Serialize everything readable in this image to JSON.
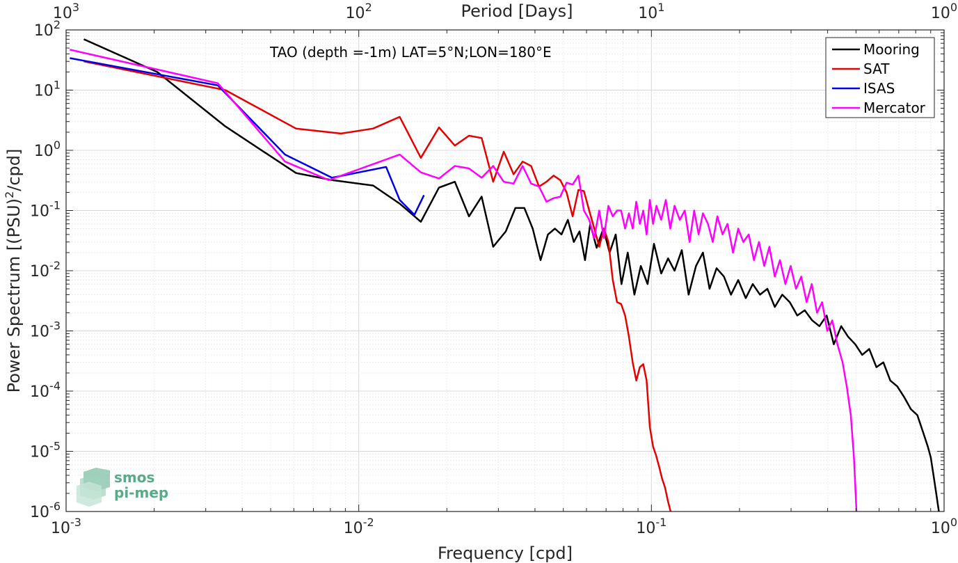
{
  "chart_data": {
    "type": "line",
    "xlabel": "Frequency [cpd]",
    "ylabel": "Power Spectrum [(PSU)",
    "ylabel_superscript": "2",
    "ylabel_suffix": "/cpd]",
    "top_xlabel": "Period [Days]",
    "annotation": "TAO (depth =-1m) LAT=5°N;LON=180°E",
    "xscale": "log",
    "yscale": "log",
    "xlim": [
      0.001,
      1
    ],
    "ylim": [
      1e-06,
      100
    ],
    "grid": true,
    "legend_position": "top-right",
    "x_ticks": [
      {
        "value": 0.001,
        "base": "10",
        "exp": "-3"
      },
      {
        "value": 0.01,
        "base": "10",
        "exp": "-2"
      },
      {
        "value": 0.1,
        "base": "10",
        "exp": "-1"
      },
      {
        "value": 1,
        "base": "10",
        "exp": "0"
      }
    ],
    "top_ticks": [
      {
        "value": 0.001,
        "base": "10",
        "exp": "3"
      },
      {
        "value": 0.01,
        "base": "10",
        "exp": "2"
      },
      {
        "value": 0.1,
        "base": "10",
        "exp": "1"
      },
      {
        "value": 1,
        "base": "10",
        "exp": "0"
      }
    ],
    "y_ticks": [
      {
        "value": 100,
        "base": "10",
        "exp": "2"
      },
      {
        "value": 10,
        "base": "10",
        "exp": "1"
      },
      {
        "value": 1,
        "base": "10",
        "exp": "0"
      },
      {
        "value": 0.1,
        "base": "10",
        "exp": "-1"
      },
      {
        "value": 0.01,
        "base": "10",
        "exp": "-2"
      },
      {
        "value": 0.001,
        "base": "10",
        "exp": "-3"
      },
      {
        "value": 0.0001,
        "base": "10",
        "exp": "-4"
      },
      {
        "value": 1e-05,
        "base": "10",
        "exp": "-5"
      },
      {
        "value": 1e-06,
        "base": "10",
        "exp": "-6"
      }
    ],
    "series": [
      {
        "name": "Mooring",
        "color": "#000000",
        "x": [
          0.00115,
          0.00205,
          0.0035,
          0.0061,
          0.0081,
          0.0112,
          0.0138,
          0.0163,
          0.0188,
          0.0213,
          0.0238,
          0.0263,
          0.0288,
          0.0318,
          0.0343,
          0.0368,
          0.0393,
          0.0418,
          0.0443,
          0.0468,
          0.0493,
          0.0518,
          0.0543,
          0.0568,
          0.0593,
          0.0618,
          0.065,
          0.0685,
          0.072,
          0.0755,
          0.079,
          0.083,
          0.0875,
          0.092,
          0.097,
          0.102,
          0.108,
          0.114,
          0.12,
          0.127,
          0.134,
          0.142,
          0.15,
          0.158,
          0.167,
          0.177,
          0.187,
          0.198,
          0.21,
          0.222,
          0.235,
          0.249,
          0.264,
          0.28,
          0.297,
          0.315,
          0.334,
          0.354,
          0.375,
          0.397,
          0.42,
          0.445,
          0.47,
          0.497,
          0.525,
          0.555,
          0.587,
          0.62,
          0.655,
          0.692,
          0.73,
          0.77,
          0.81,
          0.85,
          0.88,
          0.9,
          0.92,
          0.94,
          0.96
        ],
        "values": [
          70,
          20,
          2.5,
          0.42,
          0.32,
          0.26,
          0.13,
          0.065,
          0.24,
          0.3,
          0.08,
          0.17,
          0.025,
          0.045,
          0.11,
          0.11,
          0.05,
          0.015,
          0.04,
          0.05,
          0.04,
          0.07,
          0.03,
          0.045,
          0.015,
          0.06,
          0.024,
          0.05,
          0.02,
          0.04,
          0.006,
          0.02,
          0.004,
          0.012,
          0.006,
          0.028,
          0.009,
          0.016,
          0.01,
          0.022,
          0.004,
          0.012,
          0.02,
          0.005,
          0.011,
          0.008,
          0.004,
          0.007,
          0.0035,
          0.006,
          0.004,
          0.005,
          0.0025,
          0.004,
          0.003,
          0.0018,
          0.0022,
          0.0015,
          0.0012,
          0.0018,
          0.0006,
          0.0012,
          0.0008,
          0.0006,
          0.0004,
          0.0005,
          0.00025,
          0.0003,
          0.00015,
          0.00012,
          8e-05,
          5e-05,
          4e-05,
          2e-05,
          1.2e-05,
          8e-06,
          4e-06,
          2e-06,
          1e-06
        ]
      },
      {
        "name": "SAT",
        "color": "#e60000",
        "x": [
          0.00115,
          0.0035,
          0.0061,
          0.0087,
          0.0112,
          0.0138,
          0.0163,
          0.0188,
          0.0213,
          0.0238,
          0.0263,
          0.0288,
          0.0313,
          0.0338,
          0.0363,
          0.0388,
          0.0413,
          0.0438,
          0.0463,
          0.0488,
          0.0513,
          0.0538,
          0.0563,
          0.0588,
          0.0613,
          0.0638,
          0.0663,
          0.0688,
          0.0713,
          0.0738,
          0.0763,
          0.0788,
          0.0813,
          0.0838,
          0.0863,
          0.0888,
          0.0913,
          0.0938,
          0.0963,
          0.0988,
          0.1013,
          0.1038,
          0.1063,
          0.1088,
          0.1113,
          0.1138,
          0.1163
        ],
        "values": [
          30,
          10,
          2.3,
          1.9,
          2.3,
          3.6,
          0.75,
          2.4,
          1.2,
          1.75,
          1.6,
          0.3,
          0.95,
          0.4,
          0.65,
          0.55,
          0.25,
          0.3,
          0.38,
          0.32,
          0.2,
          0.08,
          0.22,
          0.21,
          0.1,
          0.05,
          0.025,
          0.05,
          0.03,
          0.007,
          0.003,
          0.0028,
          0.0018,
          0.0008,
          0.0003,
          0.00015,
          0.00025,
          0.00028,
          0.00015,
          2.5e-05,
          1.2e-05,
          8.5e-06,
          5.5e-06,
          3.5e-06,
          2.5e-06,
          1.5e-06,
          1e-06
        ]
      },
      {
        "name": "ISAS",
        "color": "#0000e6",
        "x": [
          0.00103,
          0.0033,
          0.0056,
          0.0081,
          0.0124,
          0.0138,
          0.0155,
          0.0167
        ],
        "values": [
          34,
          12,
          0.85,
          0.35,
          0.53,
          0.15,
          0.085,
          0.18
        ]
      },
      {
        "name": "Mercator",
        "color": "#ff00ff",
        "x": [
          0.00103,
          0.0033,
          0.0056,
          0.0079,
          0.0138,
          0.0163,
          0.0188,
          0.0213,
          0.0238,
          0.0263,
          0.0288,
          0.0313,
          0.0338,
          0.0363,
          0.0388,
          0.0413,
          0.0438,
          0.0463,
          0.0488,
          0.0513,
          0.0538,
          0.0563,
          0.0588,
          0.0613,
          0.0638,
          0.0663,
          0.0688,
          0.0713,
          0.0738,
          0.0763,
          0.0788,
          0.0813,
          0.0838,
          0.0863,
          0.0888,
          0.0913,
          0.0938,
          0.0963,
          0.0988,
          0.1013,
          0.104,
          0.108,
          0.112,
          0.116,
          0.12,
          0.125,
          0.13,
          0.135,
          0.14,
          0.145,
          0.15,
          0.156,
          0.162,
          0.168,
          0.175,
          0.182,
          0.19,
          0.198,
          0.206,
          0.215,
          0.224,
          0.233,
          0.243,
          0.253,
          0.264,
          0.275,
          0.287,
          0.299,
          0.312,
          0.325,
          0.339,
          0.353,
          0.368,
          0.383,
          0.399,
          0.415,
          0.432,
          0.45,
          0.465,
          0.48,
          0.492,
          0.502
        ],
        "values": [
          47,
          13,
          0.65,
          0.32,
          0.85,
          0.43,
          0.34,
          0.55,
          0.5,
          0.35,
          0.55,
          0.3,
          0.28,
          0.55,
          0.28,
          0.25,
          0.14,
          0.16,
          0.17,
          0.29,
          0.27,
          0.38,
          0.1,
          0.07,
          0.035,
          0.1,
          0.035,
          0.12,
          0.08,
          0.1,
          0.1,
          0.05,
          0.09,
          0.05,
          0.14,
          0.06,
          0.1,
          0.04,
          0.15,
          0.06,
          0.12,
          0.07,
          0.15,
          0.05,
          0.12,
          0.07,
          0.1,
          0.03,
          0.1,
          0.04,
          0.09,
          0.06,
          0.03,
          0.08,
          0.04,
          0.06,
          0.02,
          0.05,
          0.03,
          0.04,
          0.015,
          0.03,
          0.012,
          0.025,
          0.008,
          0.015,
          0.006,
          0.012,
          0.005,
          0.008,
          0.003,
          0.006,
          0.002,
          0.003,
          0.001,
          0.0015,
          0.0006,
          0.0003,
          0.00012,
          4e-05,
          8e-06,
          1e-06
        ]
      }
    ]
  },
  "logo": {
    "line1": "smos",
    "line2": "pi-mep",
    "color": "#5aa989"
  }
}
